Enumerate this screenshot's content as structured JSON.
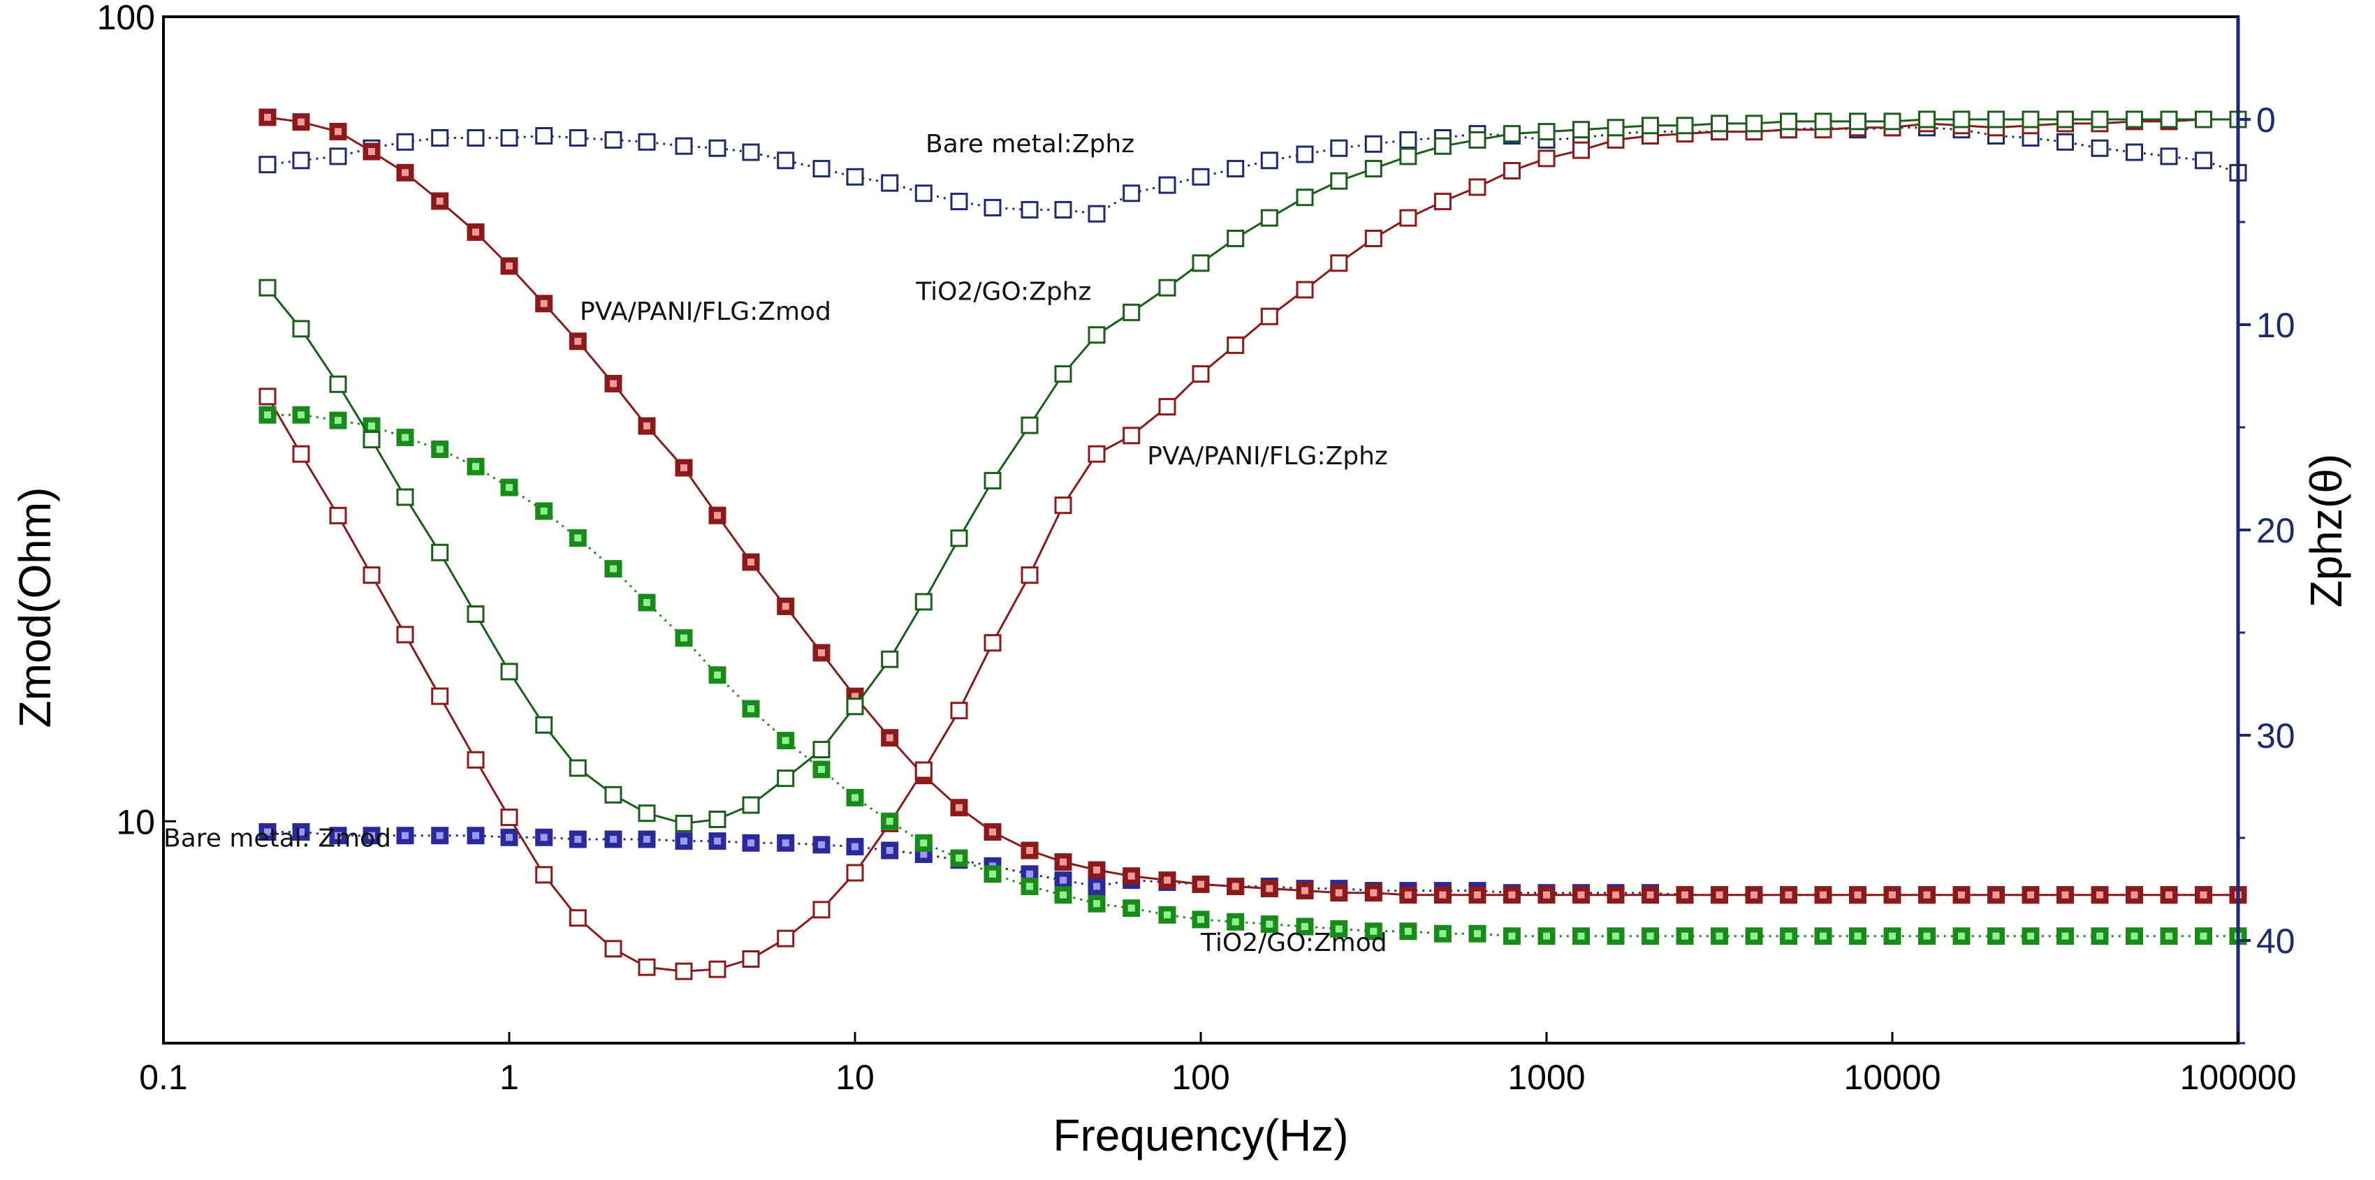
{
  "chart_data": {
    "type": "line",
    "title": "",
    "xlabel": "Frequency(Hz)",
    "ylabel_left": "Zmod(Ohm)",
    "ylabel_right": "Zphz(θ)",
    "x_scale": "log",
    "xlim": [
      0.1,
      100000
    ],
    "ylim_left": [
      5.3,
      100
    ],
    "ylim_left_scale": "log",
    "ylim_right": [
      45,
      -5
    ],
    "x_ticks": [
      {
        "value": 0.1,
        "label": "0.1"
      },
      {
        "value": 1,
        "label": "1"
      },
      {
        "value": 10,
        "label": "10"
      },
      {
        "value": 100,
        "label": "100"
      },
      {
        "value": 1000,
        "label": "1000"
      },
      {
        "value": 10000,
        "label": "10000"
      },
      {
        "value": 100000,
        "label": "100000"
      }
    ],
    "y_left_ticks": [
      {
        "value": 10,
        "label": "10"
      },
      {
        "value": 100,
        "label": "100"
      }
    ],
    "y_right_ticks": [
      {
        "value": 0,
        "label": "0"
      },
      {
        "value": 10,
        "label": "10"
      },
      {
        "value": 20,
        "label": "20"
      },
      {
        "value": 30,
        "label": "30"
      },
      {
        "value": 40,
        "label": "40"
      }
    ],
    "series": [
      {
        "name": "Bare metal: Zmod",
        "axis": "left",
        "marker": "filled",
        "line": "dotted",
        "color": "#2a2a9a",
        "x": [
          0.2,
          0.25,
          0.32,
          0.4,
          0.5,
          0.63,
          0.8,
          1,
          1.26,
          1.58,
          2,
          2.5,
          3.2,
          4,
          5,
          6.3,
          8,
          10,
          12.6,
          15.8,
          20,
          25,
          32,
          40,
          50,
          63,
          80,
          100,
          126,
          158,
          200,
          251,
          316,
          398,
          501,
          631,
          794,
          1000,
          1259,
          1585,
          1995,
          2512,
          3162,
          3981,
          5012,
          6310,
          7943,
          10000,
          12589,
          15849,
          19953,
          25119,
          31623,
          39811,
          50119,
          63096,
          79433,
          100000
        ],
        "values": [
          9.7,
          9.7,
          9.6,
          9.6,
          9.6,
          9.6,
          9.6,
          9.55,
          9.55,
          9.5,
          9.5,
          9.5,
          9.45,
          9.45,
          9.4,
          9.4,
          9.35,
          9.3,
          9.2,
          9.1,
          8.95,
          8.8,
          8.6,
          8.45,
          8.3,
          8.45,
          8.4,
          8.35,
          8.3,
          8.3,
          8.25,
          8.25,
          8.2,
          8.2,
          8.2,
          8.2,
          8.15,
          8.15,
          8.15,
          8.15,
          8.15,
          8.1,
          8.1,
          8.1,
          8.1,
          8.1,
          8.1,
          8.1,
          8.1,
          8.1,
          8.1,
          8.1,
          8.1,
          8.1,
          8.1,
          8.1,
          8.1,
          8.1
        ]
      },
      {
        "name": "Bare metal:Zphz",
        "axis": "right",
        "marker": "open",
        "line": "dotted",
        "color": "#1e2a6e",
        "x": [
          0.2,
          0.25,
          0.32,
          0.4,
          0.5,
          0.63,
          0.8,
          1,
          1.26,
          1.58,
          2,
          2.5,
          3.2,
          4,
          5,
          6.3,
          8,
          10,
          12.6,
          15.8,
          20,
          25,
          32,
          40,
          50,
          63,
          80,
          100,
          126,
          158,
          200,
          251,
          316,
          398,
          501,
          631,
          794,
          1000,
          1259,
          1585,
          1995,
          2512,
          3162,
          3981,
          5012,
          6310,
          7943,
          10000,
          12589,
          15849,
          19953,
          25119,
          31623,
          39811,
          50119,
          63096,
          79433,
          100000
        ],
        "values": [
          2.2,
          2.0,
          1.8,
          1.4,
          1.1,
          0.9,
          0.9,
          0.9,
          0.8,
          0.9,
          1.0,
          1.1,
          1.3,
          1.4,
          1.6,
          2.0,
          2.4,
          2.8,
          3.1,
          3.6,
          4.0,
          4.3,
          4.4,
          4.4,
          4.6,
          3.6,
          3.2,
          2.8,
          2.4,
          2.0,
          1.7,
          1.4,
          1.2,
          1.0,
          0.9,
          0.7,
          0.8,
          1.0,
          0.9,
          0.7,
          0.6,
          0.6,
          0.6,
          0.6,
          0.5,
          0.4,
          0.5,
          0.4,
          0.4,
          0.5,
          0.8,
          0.9,
          1.1,
          1.4,
          1.6,
          1.8,
          2.0,
          2.6
        ]
      },
      {
        "name": "PVA/PANI/FLG:Zmod",
        "axis": "left",
        "marker": "filled",
        "line": "solid",
        "color": "#8b1a1a",
        "x": [
          0.2,
          0.25,
          0.32,
          0.4,
          0.5,
          0.63,
          0.8,
          1,
          1.26,
          1.58,
          2,
          2.5,
          3.2,
          4,
          5,
          6.3,
          8,
          10,
          12.6,
          15.8,
          20,
          25,
          32,
          40,
          50,
          63,
          80,
          100,
          126,
          158,
          200,
          251,
          316,
          398,
          501,
          631,
          794,
          1000,
          1259,
          1585,
          1995,
          2512,
          3162,
          3981,
          5012,
          6310,
          7943,
          10000,
          12589,
          15849,
          19953,
          25119,
          31623,
          39811,
          50119,
          63096,
          79433,
          100000
        ],
        "values": [
          75,
          74,
          72,
          68,
          64,
          59,
          54,
          49,
          44,
          39.5,
          35,
          31,
          27.5,
          24,
          21,
          18.5,
          16.2,
          14.3,
          12.7,
          11.4,
          10.4,
          9.7,
          9.2,
          8.9,
          8.7,
          8.55,
          8.45,
          8.35,
          8.3,
          8.25,
          8.2,
          8.15,
          8.15,
          8.1,
          8.1,
          8.1,
          8.1,
          8.1,
          8.1,
          8.1,
          8.1,
          8.1,
          8.1,
          8.1,
          8.1,
          8.1,
          8.1,
          8.1,
          8.1,
          8.1,
          8.1,
          8.1,
          8.1,
          8.1,
          8.1,
          8.1,
          8.1,
          8.1
        ]
      },
      {
        "name": "PVA/PANI/FLG:Zphz",
        "axis": "right",
        "marker": "open",
        "line": "solid",
        "color": "#8b1a1a",
        "x": [
          0.2,
          0.25,
          0.32,
          0.4,
          0.5,
          0.63,
          0.8,
          1,
          1.26,
          1.58,
          2,
          2.5,
          3.2,
          4,
          5,
          6.3,
          8,
          10,
          12.6,
          15.8,
          20,
          25,
          32,
          40,
          50,
          63,
          80,
          100,
          126,
          158,
          200,
          251,
          316,
          398,
          501,
          631,
          794,
          1000,
          1259,
          1585,
          1995,
          2512,
          3162,
          3981,
          5012,
          6310,
          7943,
          10000,
          12589,
          15849,
          19953,
          25119,
          31623,
          39811,
          50119,
          63096,
          79433,
          100000
        ],
        "values": [
          13.5,
          16.3,
          19.3,
          22.2,
          25.1,
          28.1,
          31.2,
          34.0,
          36.8,
          38.9,
          40.4,
          41.3,
          41.5,
          41.4,
          40.9,
          39.9,
          38.5,
          36.7,
          34.3,
          31.7,
          28.8,
          25.5,
          22.2,
          18.8,
          16.3,
          15.4,
          14.0,
          12.4,
          11.0,
          9.6,
          8.3,
          7.0,
          5.8,
          4.8,
          4.0,
          3.3,
          2.5,
          1.9,
          1.5,
          1.0,
          0.8,
          0.7,
          0.6,
          0.6,
          0.5,
          0.5,
          0.4,
          0.4,
          0.2,
          0.3,
          0.4,
          0.3,
          0.2,
          0.2,
          0.1,
          0.1,
          0.0,
          0.0
        ]
      },
      {
        "name": "TiO2/GO:Zmod",
        "axis": "left",
        "marker": "filled",
        "line": "dotted",
        "color": "#1a8a1a",
        "x": [
          0.2,
          0.25,
          0.32,
          0.4,
          0.5,
          0.63,
          0.8,
          1,
          1.26,
          1.58,
          2,
          2.5,
          3.2,
          4,
          5,
          6.3,
          8,
          10,
          12.6,
          15.8,
          20,
          25,
          32,
          40,
          50,
          63,
          80,
          100,
          126,
          158,
          200,
          251,
          316,
          398,
          501,
          631,
          794,
          1000,
          1259,
          1585,
          1995,
          2512,
          3162,
          3981,
          5012,
          6310,
          7943,
          10000,
          12589,
          15849,
          19953,
          25119,
          31623,
          39811,
          50119,
          63096,
          79433,
          100000
        ],
        "values": [
          32,
          32,
          31.5,
          31,
          30,
          29,
          27.6,
          26,
          24.3,
          22.5,
          20.6,
          18.7,
          16.9,
          15.2,
          13.8,
          12.6,
          11.6,
          10.7,
          10.0,
          9.4,
          9.0,
          8.6,
          8.3,
          8.1,
          7.9,
          7.8,
          7.65,
          7.55,
          7.5,
          7.45,
          7.4,
          7.35,
          7.3,
          7.3,
          7.25,
          7.25,
          7.2,
          7.2,
          7.2,
          7.2,
          7.2,
          7.2,
          7.2,
          7.2,
          7.2,
          7.2,
          7.2,
          7.2,
          7.2,
          7.2,
          7.2,
          7.2,
          7.2,
          7.2,
          7.2,
          7.2,
          7.2,
          7.2
        ]
      },
      {
        "name": "TiO2/GO:Zphz",
        "axis": "right",
        "marker": "open",
        "line": "solid",
        "color": "#1a5e1a",
        "x": [
          0.2,
          0.25,
          0.32,
          0.4,
          0.5,
          0.63,
          0.8,
          1,
          1.26,
          1.58,
          2,
          2.5,
          3.2,
          4,
          5,
          6.3,
          8,
          10,
          12.6,
          15.8,
          20,
          25,
          32,
          40,
          50,
          63,
          80,
          100,
          126,
          158,
          200,
          251,
          316,
          398,
          501,
          631,
          794,
          1000,
          1259,
          1585,
          1995,
          2512,
          3162,
          3981,
          5012,
          6310,
          7943,
          10000,
          12589,
          15849,
          19953,
          25119,
          31623,
          39811,
          50119,
          63096,
          79433,
          100000
        ],
        "values": [
          8.2,
          10.2,
          12.9,
          15.6,
          18.4,
          21.1,
          24.1,
          26.9,
          29.5,
          31.6,
          32.9,
          33.8,
          34.3,
          34.1,
          33.4,
          32.1,
          30.7,
          28.6,
          26.3,
          23.5,
          20.4,
          17.6,
          14.9,
          12.4,
          10.5,
          9.4,
          8.2,
          7.0,
          5.8,
          4.8,
          3.8,
          3.0,
          2.4,
          1.8,
          1.3,
          1.0,
          0.7,
          0.6,
          0.5,
          0.4,
          0.3,
          0.3,
          0.2,
          0.2,
          0.1,
          0.1,
          0.1,
          0.1,
          0.0,
          0.0,
          0.0,
          0.0,
          0.0,
          0.0,
          0.0,
          0.0,
          0.0,
          0.0
        ]
      }
    ],
    "annotations": [
      {
        "text": "Bare metal:Zphz",
        "x": 16,
        "y_axis": "right",
        "y": 1.6
      },
      {
        "text": "PVA/PANI/FLG:Zmod",
        "x": 1.6,
        "y_axis": "left",
        "y": 42
      },
      {
        "text": "TiO2/GO:Zphz",
        "x": 15,
        "y_axis": "right",
        "y": 8.8
      },
      {
        "text": "PVA/PANI/FLG:Zphz",
        "x": 70,
        "y_axis": "right",
        "y": 16.8
      },
      {
        "text": "Bare metal: Zmod",
        "x": 0.1,
        "y_axis": "left",
        "y": 9.3
      },
      {
        "text": "TiO2/GO:Zmod",
        "x": 100,
        "y_axis": "left",
        "y": 6.9
      }
    ],
    "grid": false,
    "legend": "none"
  }
}
